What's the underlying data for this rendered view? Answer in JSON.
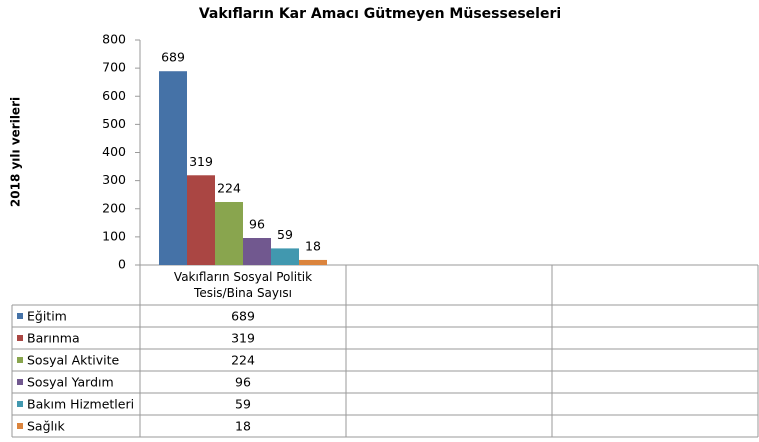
{
  "chart_data": {
    "type": "bar",
    "title": "Vakıfların Kar Amacı Gütmeyen Müsesseseleri",
    "y_label": "2018 yılı verileri",
    "categories": [
      "Vakıfların Sosyal Politik Tesis/Bina Sayısı",
      null,
      null
    ],
    "series": [
      {
        "name": "Eğitim",
        "color": "#4572a7",
        "values": [
          689,
          null,
          null
        ]
      },
      {
        "name": "Barınma",
        "color": "#aa4643",
        "values": [
          319,
          null,
          null
        ]
      },
      {
        "name": "Sosyal Aktivite",
        "color": "#89a54e",
        "values": [
          224,
          null,
          null
        ]
      },
      {
        "name": "Sosyal Yardım",
        "color": "#71588f",
        "values": [
          96,
          null,
          null
        ]
      },
      {
        "name": "Bakım Hizmetleri",
        "color": "#4198af",
        "values": [
          59,
          null,
          null
        ]
      },
      {
        "name": "Sağlık",
        "color": "#db843d",
        "values": [
          18,
          null,
          null
        ]
      }
    ],
    "ylim": [
      0,
      800
    ],
    "yticks": [
      0,
      100,
      200,
      300,
      400,
      500,
      600,
      700,
      800
    ],
    "grid": false,
    "data_labels": true,
    "data_table": true
  }
}
